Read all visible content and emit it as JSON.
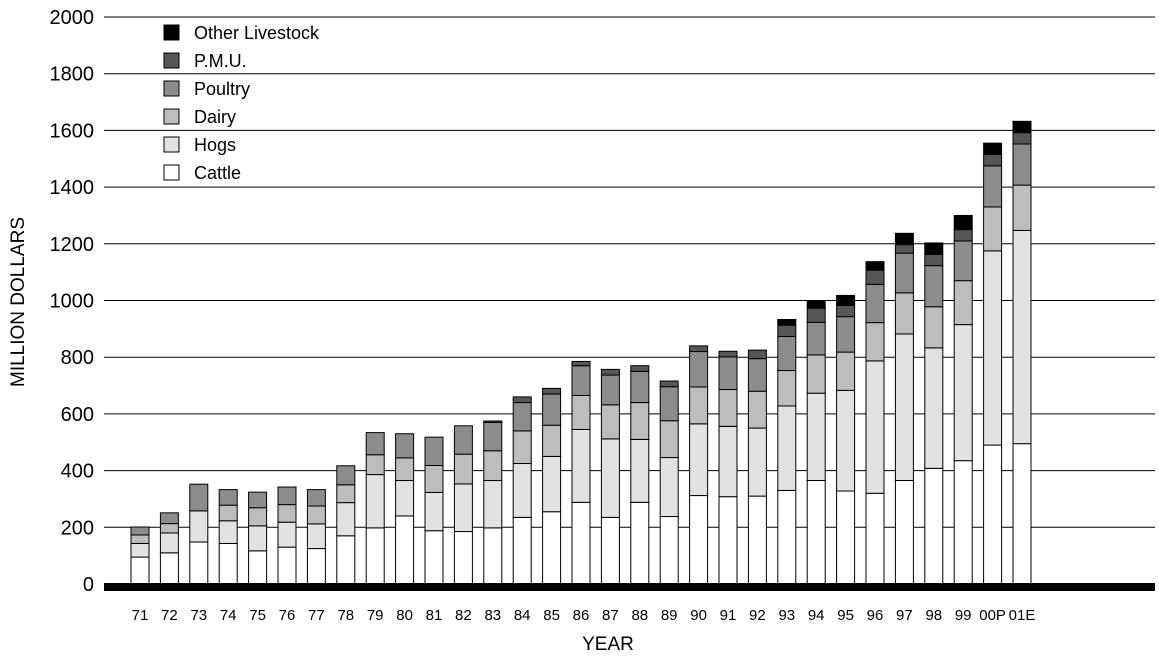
{
  "chart_data": {
    "type": "bar",
    "stacked": true,
    "title": "",
    "xlabel": "YEAR",
    "ylabel": "MILLION DOLLARS",
    "ylim": [
      0,
      2000
    ],
    "yticks": [
      0,
      200,
      400,
      600,
      800,
      1000,
      1200,
      1400,
      1600,
      1800,
      2000
    ],
    "grid": true,
    "legend_position": "top-left",
    "categories": [
      "71",
      "72",
      "73",
      "74",
      "75",
      "76",
      "77",
      "78",
      "79",
      "80",
      "81",
      "82",
      "83",
      "84",
      "85",
      "86",
      "87",
      "88",
      "89",
      "90",
      "91",
      "92",
      "93",
      "94",
      "95",
      "96",
      "97",
      "98",
      "99",
      "00P",
      "01E"
    ],
    "series": [
      {
        "name": "Cattle",
        "color": "#ffffff",
        "values": [
          95,
          110,
          148,
          143,
          117,
          130,
          125,
          170,
          198,
          240,
          188,
          185,
          198,
          235,
          255,
          288,
          235,
          288,
          238,
          312,
          308,
          310,
          330,
          365,
          328,
          320,
          365,
          408,
          435,
          490,
          495
        ]
      },
      {
        "name": "Hogs",
        "color": "#e2e2e2",
        "values": [
          48,
          70,
          110,
          80,
          88,
          88,
          87,
          117,
          188,
          125,
          135,
          168,
          167,
          190,
          195,
          257,
          277,
          222,
          208,
          253,
          248,
          240,
          298,
          308,
          355,
          467,
          517,
          425,
          480,
          685,
          752
        ]
      },
      {
        "name": "Dairy",
        "color": "#bdbdbd",
        "values": [
          30,
          33,
          0,
          55,
          64,
          62,
          63,
          63,
          70,
          80,
          95,
          105,
          105,
          115,
          110,
          120,
          120,
          130,
          130,
          130,
          130,
          130,
          125,
          135,
          135,
          135,
          145,
          145,
          155,
          155,
          160
        ]
      },
      {
        "name": "Poultry",
        "color": "#8c8c8c",
        "values": [
          28,
          38,
          94,
          55,
          55,
          62,
          58,
          67,
          78,
          85,
          100,
          100,
          100,
          100,
          110,
          105,
          105,
          110,
          120,
          125,
          115,
          115,
          120,
          115,
          125,
          135,
          140,
          145,
          140,
          145,
          145
        ]
      },
      {
        "name": "P.M.U.",
        "color": "#565656",
        "values": [
          0,
          0,
          0,
          0,
          0,
          0,
          0,
          0,
          0,
          0,
          0,
          0,
          5,
          20,
          20,
          15,
          20,
          20,
          20,
          20,
          20,
          30,
          40,
          50,
          40,
          50,
          30,
          40,
          40,
          40,
          40
        ]
      },
      {
        "name": "Other Livestock",
        "color": "#000000",
        "values": [
          0,
          0,
          0,
          0,
          0,
          0,
          0,
          0,
          0,
          0,
          0,
          0,
          0,
          0,
          0,
          0,
          0,
          0,
          0,
          0,
          0,
          0,
          20,
          25,
          35,
          30,
          40,
          40,
          50,
          40,
          40
        ]
      }
    ]
  }
}
